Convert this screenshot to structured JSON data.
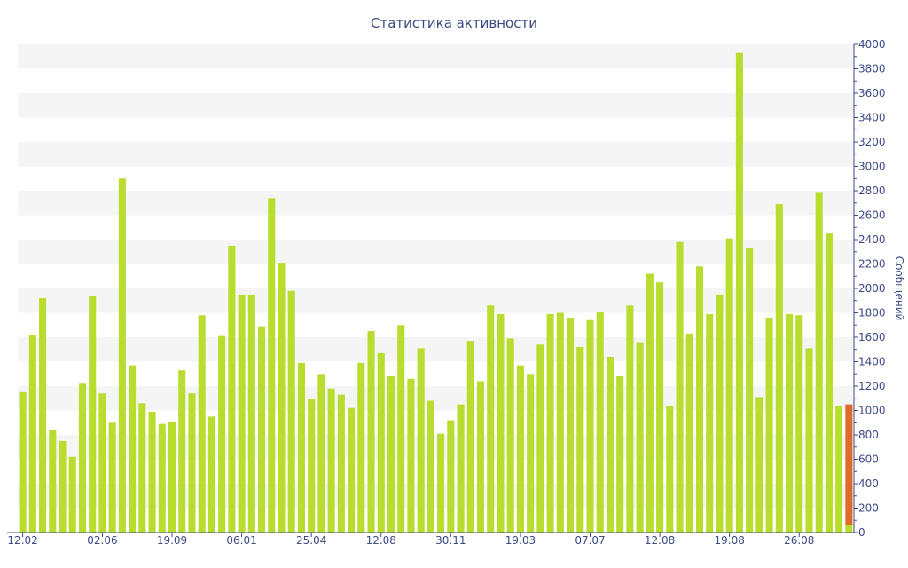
{
  "chart_data": {
    "type": "bar",
    "title": "Статистика активности",
    "xlabel": "",
    "ylabel": "Сообщений",
    "ylim": [
      0,
      4000
    ],
    "ytick_step": 200,
    "x_tick_labels": [
      {
        "label": "12.02",
        "index": 0
      },
      {
        "label": "02.06",
        "index": 8
      },
      {
        "label": "19.09",
        "index": 15
      },
      {
        "label": "06.01",
        "index": 22
      },
      {
        "label": "25.04",
        "index": 29
      },
      {
        "label": "12.08",
        "index": 36
      },
      {
        "label": "30.11",
        "index": 43
      },
      {
        "label": "19.03",
        "index": 50
      },
      {
        "label": "07.07",
        "index": 57
      },
      {
        "label": "12.08",
        "index": 64
      },
      {
        "label": "19.08",
        "index": 71
      },
      {
        "label": "26.08",
        "index": 78
      }
    ],
    "colors": {
      "bar": "#b8dd2e",
      "highlight": "#e06a2a",
      "axis": "#3c4a86",
      "band": "#f5f5f5"
    },
    "series": [
      {
        "values": [
          1150,
          1620,
          1920,
          840,
          750,
          620,
          1220,
          1940,
          1140,
          900,
          2900,
          1370,
          1060,
          990,
          890,
          910,
          1330,
          1140,
          1780,
          950,
          1610,
          2350,
          1950,
          1950,
          1690,
          2740,
          2210,
          1980,
          1390,
          1090,
          1300,
          1180,
          1130,
          1020,
          1390,
          1650,
          1470,
          1280,
          1700,
          1260,
          1510,
          1080,
          810,
          920,
          1050,
          1570,
          1240,
          1860,
          1790,
          1590,
          1370,
          1300,
          1540,
          1790,
          1800,
          1760,
          1520,
          1740,
          1810,
          1440,
          1280,
          1860,
          1560,
          2120,
          2050,
          1040,
          2380,
          1630,
          2180,
          1790,
          1950,
          2410,
          3930,
          2330,
          1110,
          1760,
          2690,
          1790,
          1780,
          1510,
          2790,
          2450,
          1040,
          1050
        ]
      }
    ],
    "highlight": {
      "index": 83,
      "value": 1050,
      "base_value": 60
    }
  }
}
